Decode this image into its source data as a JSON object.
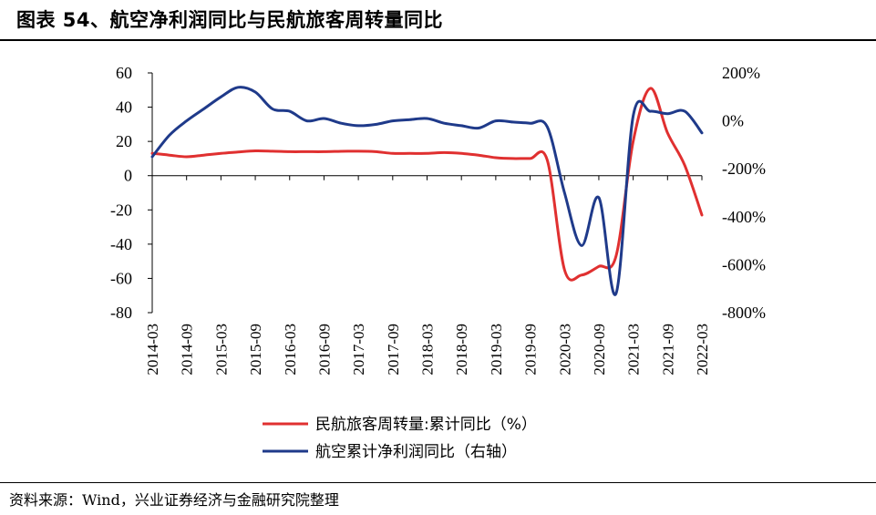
{
  "header": {
    "title": "图表 54、航空净利润同比与民航旅客周转量同比"
  },
  "footer": {
    "source": "资料来源：Wind，兴业证券经济与金融研究院整理"
  },
  "chart_data": {
    "type": "line",
    "title": "",
    "x_tick_labels": [
      "2014-03",
      "2014-09",
      "2015-03",
      "2015-09",
      "2016-03",
      "2016-09",
      "2017-03",
      "2017-09",
      "2018-03",
      "2018-09",
      "2019-03",
      "2019-09",
      "2020-03",
      "2020-09",
      "2021-03",
      "2021-09",
      "2022-03"
    ],
    "y_left": {
      "ylim": [
        -80,
        60
      ],
      "ticks": [
        "60",
        "40",
        "20",
        "0",
        "-20",
        "-40",
        "-60",
        "-80"
      ]
    },
    "y_right": {
      "ylim": [
        -800,
        200
      ],
      "ticks": [
        "200%",
        "0%",
        "-200%",
        "-400%",
        "-600%",
        "-800%"
      ]
    },
    "grid": false,
    "legend_position": "bottom",
    "series": [
      {
        "name": "民航旅客周转量:累计同比（%）",
        "axis": "left",
        "color": "#e03030",
        "x": [
          "2014-03",
          "2014-06",
          "2014-09",
          "2014-12",
          "2015-03",
          "2015-06",
          "2015-09",
          "2015-12",
          "2016-03",
          "2016-06",
          "2016-09",
          "2016-12",
          "2017-03",
          "2017-06",
          "2017-09",
          "2017-12",
          "2018-03",
          "2018-06",
          "2018-09",
          "2018-12",
          "2019-03",
          "2019-06",
          "2019-09",
          "2019-12",
          "2020-03",
          "2020-06",
          "2020-09",
          "2020-12",
          "2021-03",
          "2021-06",
          "2021-09",
          "2021-12",
          "2022-03"
        ],
        "values": [
          13,
          12,
          11,
          12,
          13,
          13.8,
          14.5,
          14.3,
          14,
          14,
          14,
          14.2,
          14.3,
          14,
          13,
          13,
          13,
          13.5,
          13,
          12,
          10.5,
          10,
          10,
          9,
          -55,
          -58,
          -53,
          -47,
          20,
          51,
          25,
          6,
          -23
        ]
      },
      {
        "name": "航空累计净利润同比（右轴）",
        "axis": "right",
        "color": "#1f3a8a",
        "x": [
          "2014-03",
          "2014-06",
          "2014-09",
          "2014-12",
          "2015-03",
          "2015-06",
          "2015-09",
          "2015-12",
          "2016-03",
          "2016-06",
          "2016-09",
          "2016-12",
          "2017-03",
          "2017-06",
          "2017-09",
          "2017-12",
          "2018-03",
          "2018-06",
          "2018-09",
          "2018-12",
          "2019-03",
          "2019-06",
          "2019-09",
          "2019-12",
          "2020-03",
          "2020-06",
          "2020-09",
          "2020-12",
          "2021-03",
          "2021-06",
          "2021-09",
          "2021-12",
          "2022-03"
        ],
        "values": [
          -150,
          -60,
          0,
          50,
          100,
          140,
          120,
          50,
          40,
          0,
          10,
          -10,
          -20,
          -15,
          0,
          5,
          10,
          -10,
          -20,
          -30,
          0,
          -5,
          -10,
          -25,
          -300,
          -520,
          -320,
          -720,
          20,
          40,
          30,
          40,
          -50
        ]
      }
    ]
  }
}
